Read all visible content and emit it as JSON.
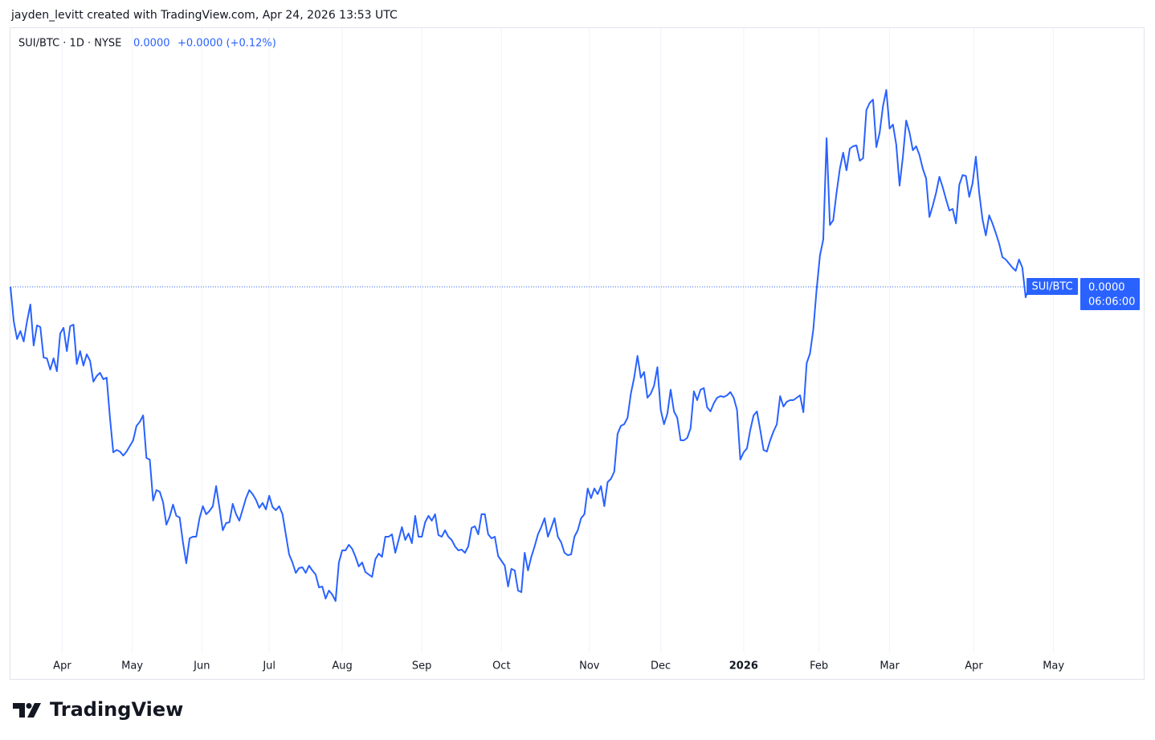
{
  "chart_data": {
    "type": "line",
    "credit": "jayden_levitt created with TradingView.com, Apr 24, 2026 13:53 UTC",
    "title": "SUI/BTC · 1D · NYSE",
    "last_price": "0.0000",
    "change": "+0.0000 (+0.12%)",
    "price_label": {
      "symbol": "SUI/BTC",
      "price": "0.0000",
      "countdown": "06:06:00"
    },
    "brand": "TradingView",
    "color": "#2962ff",
    "grid": true,
    "ylim": [
      7.62e-06,
      1.572e-05
    ],
    "xlim": [
      0,
      341.6
    ],
    "xticks": [
      {
        "value": 15.6,
        "label": "Apr"
      },
      {
        "value": 36.7,
        "label": "May"
      },
      {
        "value": 57.7,
        "label": "Jun"
      },
      {
        "value": 78,
        "label": "Jul"
      },
      {
        "value": 100,
        "label": "Aug"
      },
      {
        "value": 124,
        "label": "Sep"
      },
      {
        "value": 148,
        "label": "Oct"
      },
      {
        "value": 174.5,
        "label": "Nov"
      },
      {
        "value": 196,
        "label": "Dec"
      },
      {
        "value": 221,
        "label": "2026",
        "bold": true
      },
      {
        "value": 243.7,
        "label": "Feb"
      },
      {
        "value": 265,
        "label": "Mar"
      },
      {
        "value": 290.4,
        "label": "Apr"
      },
      {
        "value": 314.4,
        "label": "May"
      }
    ],
    "values": [
      1.25e-05,
      1.207e-05,
      1.185e-05,
      1.195e-05,
      1.182e-05,
      1.207e-05,
      1.228e-05,
      1.177e-05,
      1.202e-05,
      1.2e-05,
      1.162e-05,
      1.161e-05,
      1.147e-05,
      1.161e-05,
      1.145e-05,
      1.192e-05,
      1.199e-05,
      1.17e-05,
      1.201e-05,
      1.203e-05,
      1.154e-05,
      1.17e-05,
      1.152e-05,
      1.166e-05,
      1.158e-05,
      1.132e-05,
      1.139e-05,
      1.143e-05,
      1.135e-05,
      1.137e-05,
      1.087e-05,
      1.044e-05,
      1.047e-05,
      1.045e-05,
      1.04e-05,
      1.045e-05,
      1.052e-05,
      1.059e-05,
      1.077e-05,
      1.082e-05,
      1.09e-05,
      1.037e-05,
      1.035e-05,
      9.84e-06,
      9.97e-06,
      9.95e-06,
      9.82e-06,
      9.54e-06,
      9.64e-06,
      9.79e-06,
      9.65e-06,
      9.63e-06,
      9.32e-06,
      9.06e-06,
      9.37e-06,
      9.39e-06,
      9.39e-06,
      9.62e-06,
      9.77e-06,
      9.67e-06,
      9.71e-06,
      9.77e-06,
      1.002e-05,
      9.75e-06,
      9.47e-06,
      9.56e-06,
      9.57e-06,
      9.8e-06,
      9.67e-06,
      9.59e-06,
      9.73e-06,
      9.87e-06,
      9.97e-06,
      9.92e-06,
      9.85e-06,
      9.75e-06,
      9.81e-06,
      9.73e-06,
      9.9e-06,
      9.76e-06,
      9.72e-06,
      9.77e-06,
      9.67e-06,
      9.42e-06,
      9.17e-06,
      9.07e-06,
      8.94e-06,
      9e-06,
      9.01e-06,
      8.94e-06,
      9.03e-06,
      8.97e-06,
      8.92e-06,
      8.76e-06,
      8.77e-06,
      8.62e-06,
      8.72e-06,
      8.67e-06,
      8.59e-06,
      9.07e-06,
      9.22e-06,
      9.22e-06,
      9.29e-06,
      9.24e-06,
      9.14e-06,
      9.02e-06,
      9.07e-06,
      8.95e-06,
      8.92e-06,
      8.89e-06,
      9.11e-06,
      9.18e-06,
      9.14e-06,
      9.39e-06,
      9.39e-06,
      9.42e-06,
      9.19e-06,
      9.35e-06,
      9.51e-06,
      9.35e-06,
      9.43e-06,
      9.31e-06,
      9.65e-06,
      9.39e-06,
      9.39e-06,
      9.57e-06,
      9.65e-06,
      9.59e-06,
      9.67e-06,
      9.41e-06,
      9.39e-06,
      9.47e-06,
      9.39e-06,
      9.35e-06,
      9.27e-06,
      9.22e-06,
      9.23e-06,
      9.19e-06,
      9.27e-06,
      9.5e-06,
      9.52e-06,
      9.42e-06,
      9.67e-06,
      9.67e-06,
      9.42e-06,
      9.37e-06,
      9.39e-06,
      9.15e-06,
      9.09e-06,
      9.03e-06,
      8.77e-06,
      8.99e-06,
      8.97e-06,
      8.72e-06,
      8.7e-06,
      9.19e-06,
      8.97e-06,
      9.14e-06,
      9.27e-06,
      9.42e-06,
      9.51e-06,
      9.62e-06,
      9.39e-06,
      9.5e-06,
      9.62e-06,
      9.39e-06,
      9.32e-06,
      9.19e-06,
      9.16e-06,
      9.17e-06,
      9.39e-06,
      9.47e-06,
      9.62e-06,
      9.67e-06,
      9.99e-06,
      9.87e-06,
      9.99e-06,
      9.92e-06,
      1.002e-05,
      9.77e-06,
      1.007e-05,
      1.011e-05,
      1.02e-05,
      1.067e-05,
      1.077e-05,
      1.079e-05,
      1.087e-05,
      1.117e-05,
      1.137e-05,
      1.164e-05,
      1.137e-05,
      1.144e-05,
      1.112e-05,
      1.117e-05,
      1.127e-05,
      1.15e-05,
      1.097e-05,
      1.079e-05,
      1.092e-05,
      1.122e-05,
      1.095e-05,
      1.087e-05,
      1.059e-05,
      1.059e-05,
      1.062e-05,
      1.074e-05,
      1.12e-05,
      1.109e-05,
      1.122e-05,
      1.124e-05,
      1.1e-05,
      1.095e-05,
      1.105e-05,
      1.112e-05,
      1.114e-05,
      1.113e-05,
      1.115e-05,
      1.119e-05,
      1.112e-05,
      1.097e-05,
      1.035e-05,
      1.044e-05,
      1.049e-05,
      1.072e-05,
      1.09e-05,
      1.095e-05,
      1.072e-05,
      1.047e-05,
      1.045e-05,
      1.059e-05,
      1.07e-05,
      1.079e-05,
      1.114e-05,
      1.101e-05,
      1.107e-05,
      1.109e-05,
      1.109e-05,
      1.112e-05,
      1.115e-05,
      1.094e-05,
      1.155e-05,
      1.167e-05,
      1.197e-05,
      1.247e-05,
      1.289e-05,
      1.309e-05,
      1.435e-05,
      1.327e-05,
      1.333e-05,
      1.367e-05,
      1.397e-05,
      1.417e-05,
      1.395e-05,
      1.422e-05,
      1.425e-05,
      1.426e-05,
      1.407e-05,
      1.41e-05,
      1.47e-05,
      1.479e-05,
      1.483e-05,
      1.424e-05,
      1.442e-05,
      1.475e-05,
      1.495e-05,
      1.447e-05,
      1.452e-05,
      1.427e-05,
      1.376e-05,
      1.412e-05,
      1.457e-05,
      1.442e-05,
      1.42e-05,
      1.425e-05,
      1.414e-05,
      1.397e-05,
      1.385e-05,
      1.337e-05,
      1.351e-05,
      1.367e-05,
      1.387e-05,
      1.374e-05,
      1.359e-05,
      1.345e-05,
      1.347e-05,
      1.329e-05,
      1.377e-05,
      1.389e-05,
      1.388e-05,
      1.362e-05,
      1.379e-05,
      1.412e-05,
      1.367e-05,
      1.334e-05,
      1.314e-05,
      1.339e-05,
      1.329e-05,
      1.317e-05,
      1.304e-05,
      1.287e-05,
      1.284e-05,
      1.279e-05,
      1.274e-05,
      1.27e-05,
      1.284e-05,
      1.274e-05,
      1.237e-05,
      1.25e-05
    ]
  }
}
